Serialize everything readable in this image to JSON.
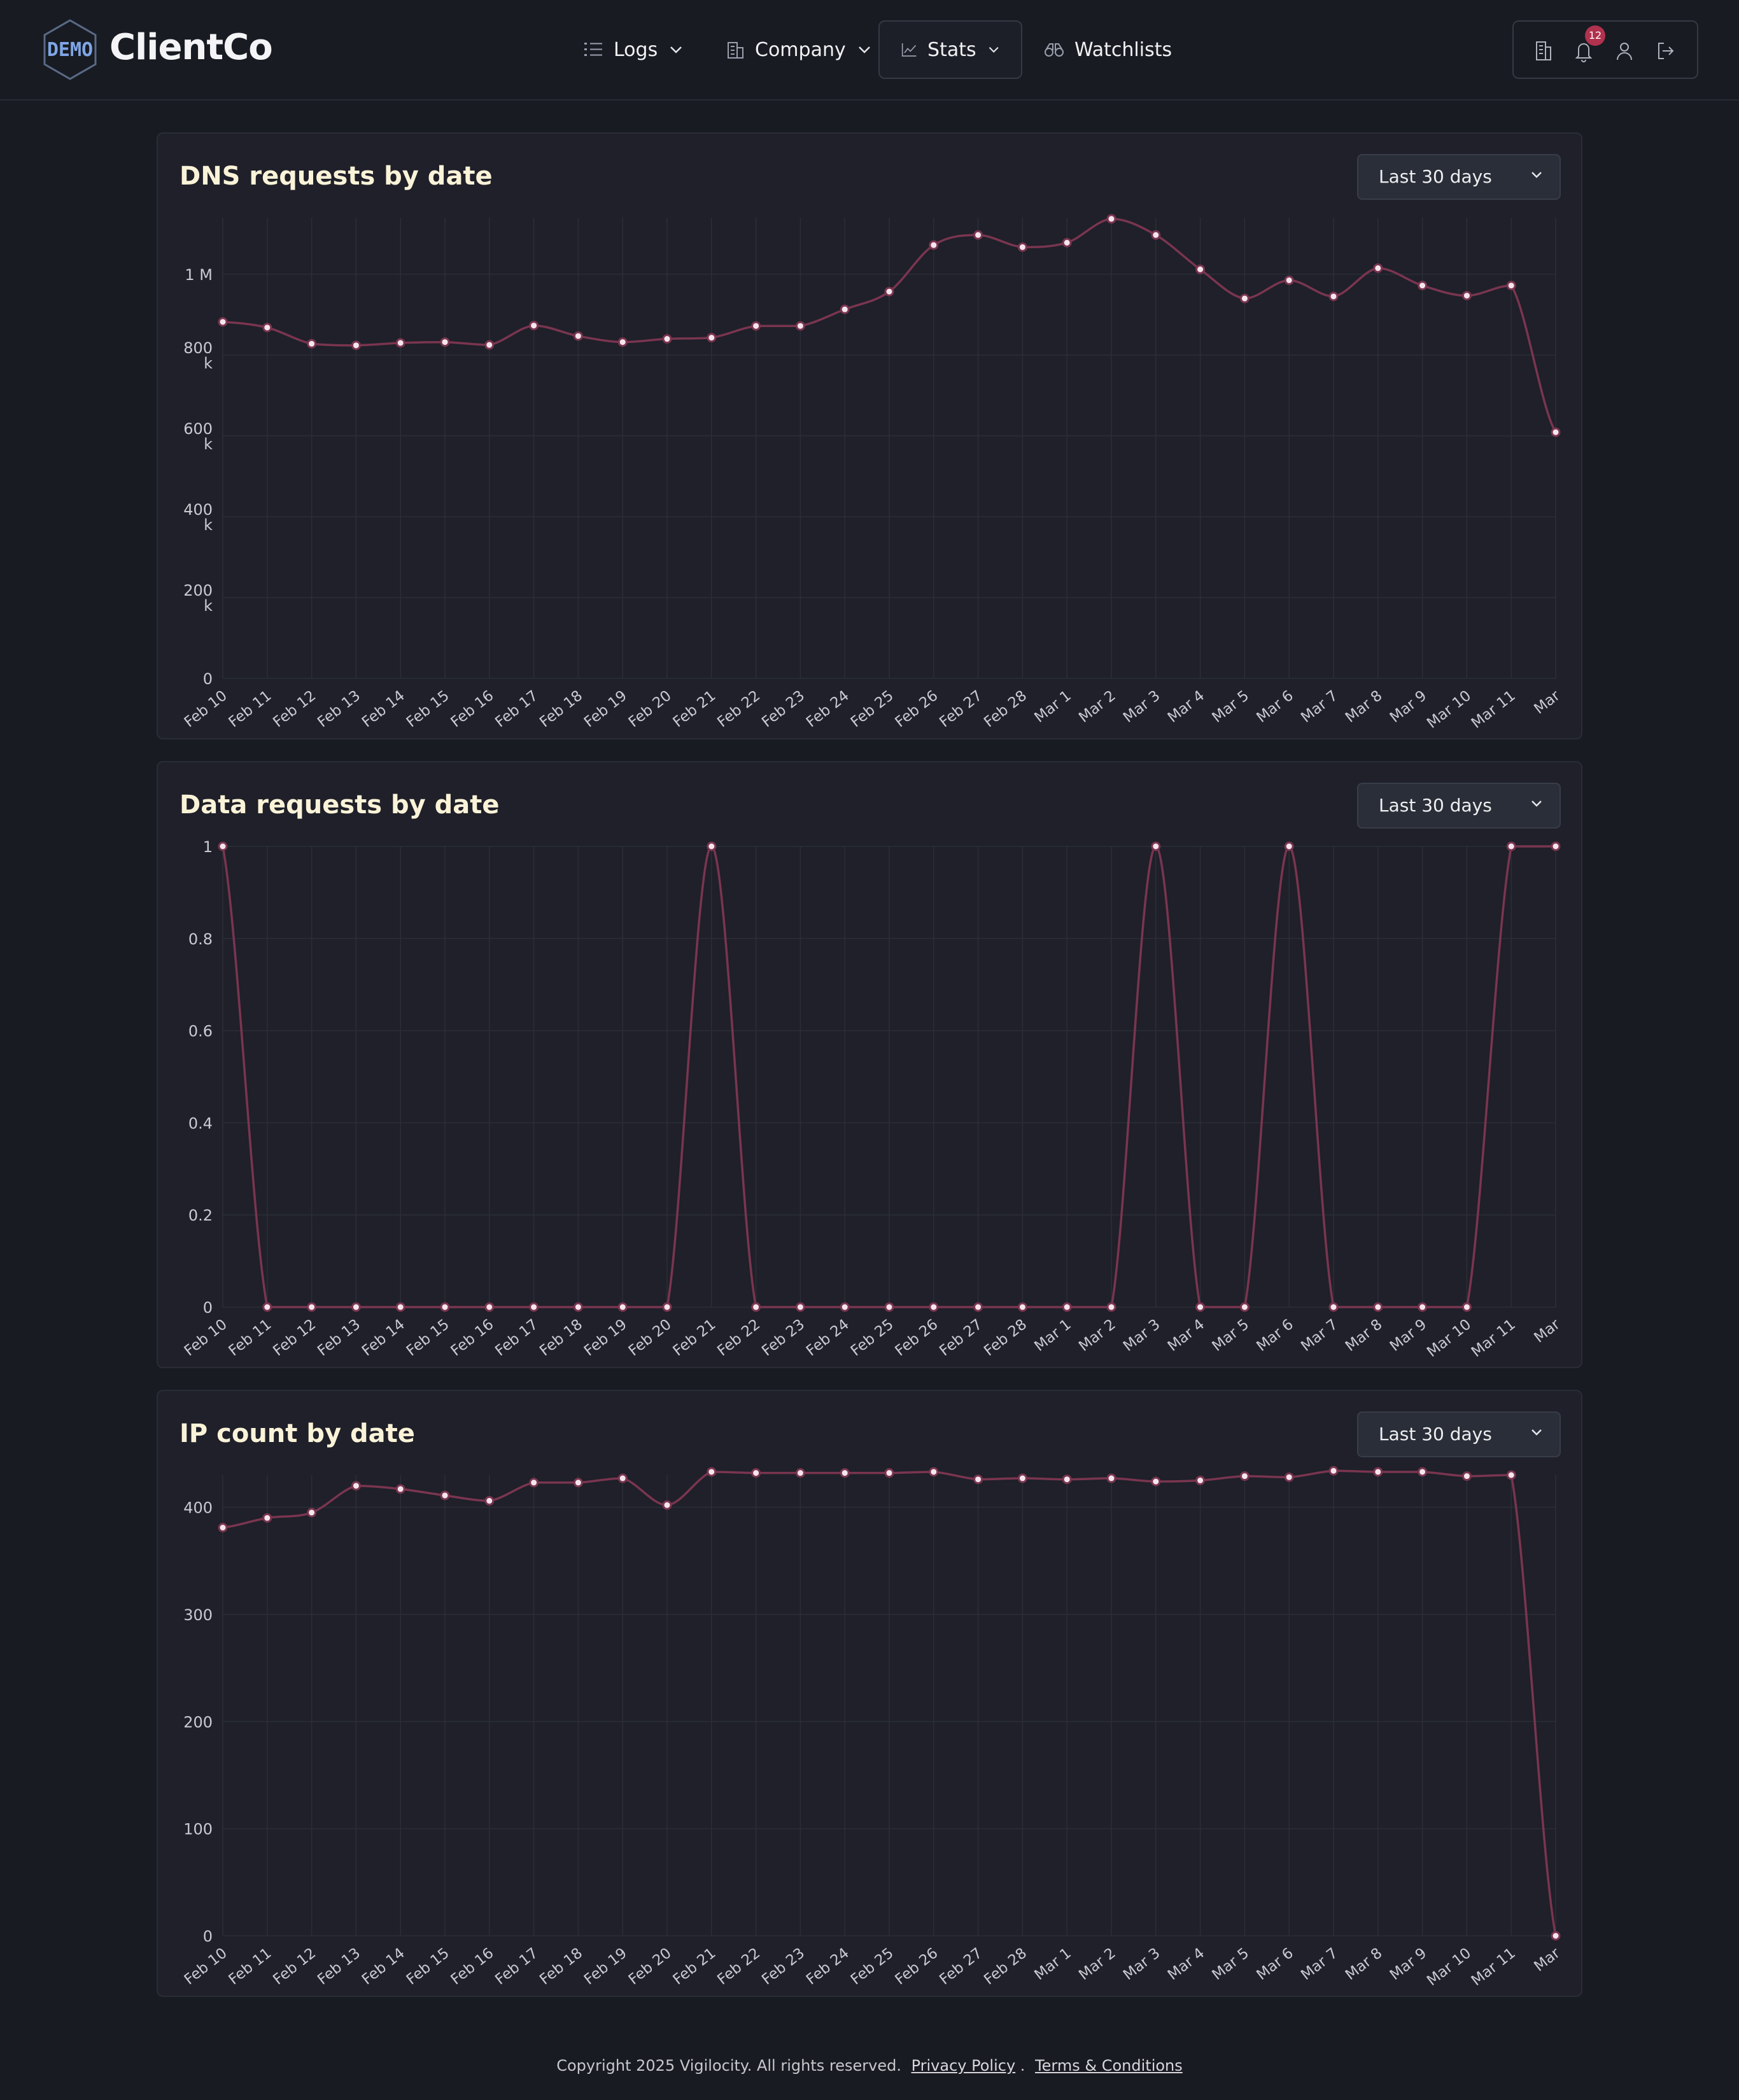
{
  "header": {
    "logo_text": "DEMO",
    "brand": "ClientCo",
    "nav": [
      {
        "label": "Logs",
        "icon": "list-icon"
      },
      {
        "label": "Company",
        "icon": "building-icon"
      },
      {
        "label": "Stats",
        "icon": "chart-icon"
      },
      {
        "label": "Watchlists",
        "icon": "binoculars-icon"
      }
    ],
    "notification_count": "12"
  },
  "dates": [
    "Feb 10",
    "Feb 11",
    "Feb 12",
    "Feb 13",
    "Feb 14",
    "Feb 15",
    "Feb 16",
    "Feb 17",
    "Feb 18",
    "Feb 19",
    "Feb 20",
    "Feb 21",
    "Feb 22",
    "Feb 23",
    "Feb 24",
    "Feb 25",
    "Feb 26",
    "Feb 27",
    "Feb 28",
    "Mar 1",
    "Mar 2",
    "Mar 3",
    "Mar 4",
    "Mar 5",
    "Mar 6",
    "Mar 7",
    "Mar 8",
    "Mar 9",
    "Mar 10",
    "Mar 11",
    "Mar"
  ],
  "range_label": "Last 30 days",
  "chart_data": [
    {
      "type": "line",
      "title": "DNS requests by date",
      "ylim": [
        0,
        1140000
      ],
      "yticks": [
        0,
        200000,
        400000,
        600000,
        800000,
        1000000
      ],
      "ytick_labels": [
        "0",
        "200 k",
        "400 k",
        "600 k",
        "800 k",
        "1 M"
      ],
      "values": [
        882000,
        868000,
        828000,
        824000,
        830000,
        832000,
        825000,
        873000,
        847000,
        832000,
        840000,
        843000,
        872000,
        872000,
        913000,
        957000,
        1072000,
        1097000,
        1067000,
        1078000,
        1137000,
        1097000,
        1012000,
        940000,
        985000,
        945000,
        1015000,
        972000,
        947000,
        972000,
        609000
      ]
    },
    {
      "type": "line",
      "title": "Data requests by date",
      "ylim": [
        0,
        1
      ],
      "yticks": [
        0,
        0.2,
        0.4,
        0.6,
        0.8,
        1
      ],
      "ytick_labels": [
        "0",
        "0.2",
        "0.4",
        "0.6",
        "0.8",
        "1"
      ],
      "values": [
        1,
        0,
        0,
        0,
        0,
        0,
        0,
        0,
        0,
        0,
        0,
        1,
        0,
        0,
        0,
        0,
        0,
        0,
        0,
        0,
        0,
        1,
        0,
        0,
        1,
        0,
        0,
        0,
        0,
        1,
        1
      ]
    },
    {
      "type": "line",
      "title": "IP count by date",
      "ylim": [
        0,
        430
      ],
      "yticks": [
        0,
        100,
        200,
        300,
        400
      ],
      "ytick_labels": [
        "0",
        "100",
        "200",
        "300",
        "400"
      ],
      "values": [
        381,
        390,
        395,
        420,
        417,
        411,
        406,
        423,
        423,
        427,
        402,
        433,
        432,
        432,
        432,
        432,
        433,
        426,
        427,
        426,
        427,
        424,
        425,
        429,
        428,
        434,
        433,
        433,
        429,
        430,
        0
      ]
    }
  ],
  "footer": {
    "copyright": "Copyright 2025 Vigilocity. All rights reserved.",
    "privacy": "Privacy Policy",
    "separator": ".",
    "terms": "Terms & Conditions"
  },
  "colors": {
    "line": "#7a3550",
    "point_fill": "#f4e6ec",
    "grid": "#2b2e38",
    "title": "#fbf3d8"
  }
}
